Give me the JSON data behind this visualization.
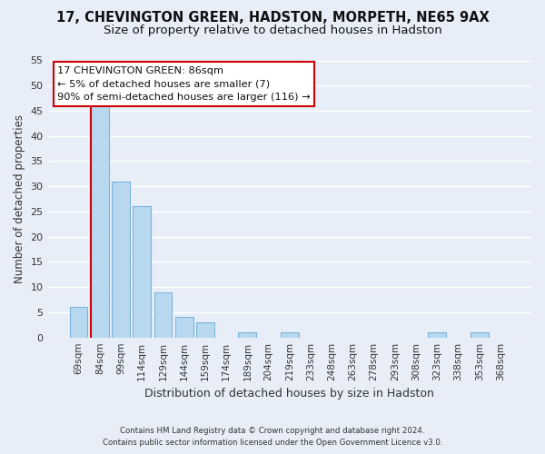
{
  "title": "17, CHEVINGTON GREEN, HADSTON, MORPETH, NE65 9AX",
  "subtitle": "Size of property relative to detached houses in Hadston",
  "xlabel": "Distribution of detached houses by size in Hadston",
  "ylabel": "Number of detached properties",
  "bar_labels": [
    "69sqm",
    "84sqm",
    "99sqm",
    "114sqm",
    "129sqm",
    "144sqm",
    "159sqm",
    "174sqm",
    "189sqm",
    "204sqm",
    "219sqm",
    "233sqm",
    "248sqm",
    "263sqm",
    "278sqm",
    "293sqm",
    "308sqm",
    "323sqm",
    "338sqm",
    "353sqm",
    "368sqm"
  ],
  "bar_values": [
    6,
    46,
    31,
    26,
    9,
    4,
    3,
    0,
    1,
    0,
    1,
    0,
    0,
    0,
    0,
    0,
    0,
    1,
    0,
    1,
    0
  ],
  "bar_color": "#b8d8f0",
  "bar_edge_color": "#7ab4d8",
  "vline_color": "#cc0000",
  "vline_x_index": 1,
  "ylim": [
    0,
    55
  ],
  "yticks": [
    0,
    5,
    10,
    15,
    20,
    25,
    30,
    35,
    40,
    45,
    50,
    55
  ],
  "annotation_title": "17 CHEVINGTON GREEN: 86sqm",
  "annotation_line1": "← 5% of detached houses are smaller (7)",
  "annotation_line2": "90% of semi-detached houses are larger (116) →",
  "annotation_box_color": "#ffffff",
  "annotation_box_edge": "#cc0000",
  "footer_line1": "Contains HM Land Registry data © Crown copyright and database right 2024.",
  "footer_line2": "Contains public sector information licensed under the Open Government Licence v3.0.",
  "bg_color": "#e8eef8",
  "plot_bg_color": "#e8eef8",
  "grid_color": "#ffffff",
  "title_fontsize": 10.5,
  "subtitle_fontsize": 9.5,
  "ylabel_text": "Number of detached properties"
}
